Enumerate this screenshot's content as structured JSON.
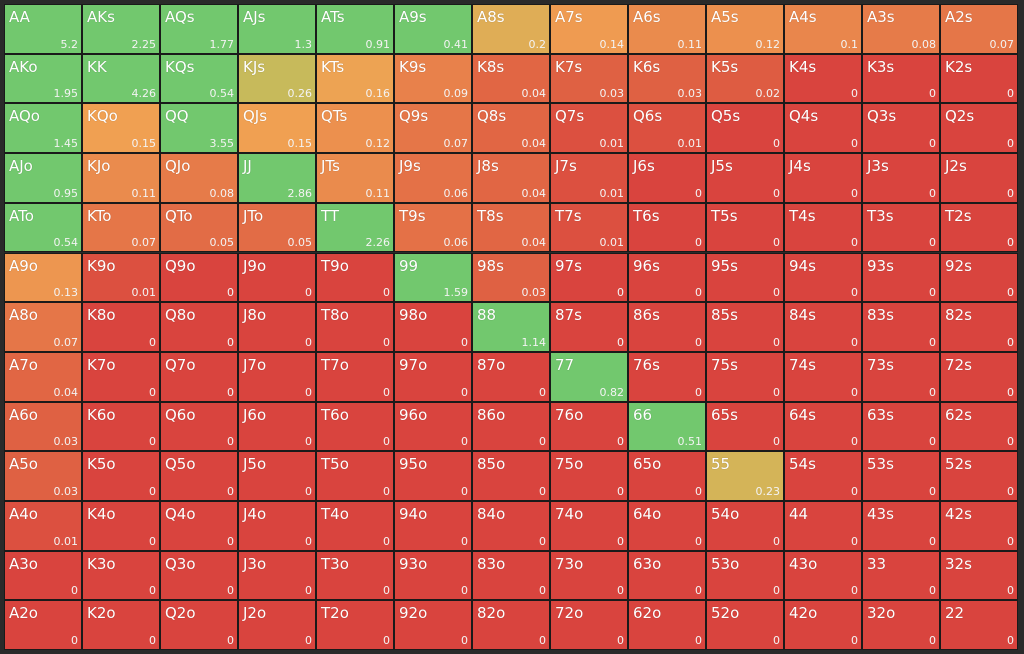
{
  "grid": {
    "rows": [
      [
        {
          "label": "AA",
          "value": 5.2
        },
        {
          "label": "AKs",
          "value": 2.25
        },
        {
          "label": "AQs",
          "value": 1.77
        },
        {
          "label": "AJs",
          "value": 1.3
        },
        {
          "label": "ATs",
          "value": 0.91
        },
        {
          "label": "A9s",
          "value": 0.41
        },
        {
          "label": "A8s",
          "value": 0.2
        },
        {
          "label": "A7s",
          "value": 0.14
        },
        {
          "label": "A6s",
          "value": 0.11
        },
        {
          "label": "A5s",
          "value": 0.12
        },
        {
          "label": "A4s",
          "value": 0.1
        },
        {
          "label": "A3s",
          "value": 0.08
        },
        {
          "label": "A2s",
          "value": 0.07
        }
      ],
      [
        {
          "label": "AKo",
          "value": 1.95
        },
        {
          "label": "KK",
          "value": 4.26
        },
        {
          "label": "KQs",
          "value": 0.54
        },
        {
          "label": "KJs",
          "value": 0.26
        },
        {
          "label": "KTs",
          "value": 0.16
        },
        {
          "label": "K9s",
          "value": 0.09
        },
        {
          "label": "K8s",
          "value": 0.04
        },
        {
          "label": "K7s",
          "value": 0.03
        },
        {
          "label": "K6s",
          "value": 0.03
        },
        {
          "label": "K5s",
          "value": 0.02
        },
        {
          "label": "K4s",
          "value": 0
        },
        {
          "label": "K3s",
          "value": 0
        },
        {
          "label": "K2s",
          "value": 0
        }
      ],
      [
        {
          "label": "AQo",
          "value": 1.45
        },
        {
          "label": "KQo",
          "value": 0.15
        },
        {
          "label": "QQ",
          "value": 3.55
        },
        {
          "label": "QJs",
          "value": 0.15
        },
        {
          "label": "QTs",
          "value": 0.12
        },
        {
          "label": "Q9s",
          "value": 0.07
        },
        {
          "label": "Q8s",
          "value": 0.04
        },
        {
          "label": "Q7s",
          "value": 0.01
        },
        {
          "label": "Q6s",
          "value": 0.01
        },
        {
          "label": "Q5s",
          "value": 0
        },
        {
          "label": "Q4s",
          "value": 0
        },
        {
          "label": "Q3s",
          "value": 0
        },
        {
          "label": "Q2s",
          "value": 0
        }
      ],
      [
        {
          "label": "AJo",
          "value": 0.95
        },
        {
          "label": "KJo",
          "value": 0.11
        },
        {
          "label": "QJo",
          "value": 0.08
        },
        {
          "label": "JJ",
          "value": 2.86
        },
        {
          "label": "JTs",
          "value": 0.11
        },
        {
          "label": "J9s",
          "value": 0.06
        },
        {
          "label": "J8s",
          "value": 0.04
        },
        {
          "label": "J7s",
          "value": 0.01
        },
        {
          "label": "J6s",
          "value": 0
        },
        {
          "label": "J5s",
          "value": 0
        },
        {
          "label": "J4s",
          "value": 0
        },
        {
          "label": "J3s",
          "value": 0
        },
        {
          "label": "J2s",
          "value": 0
        }
      ],
      [
        {
          "label": "ATo",
          "value": 0.54
        },
        {
          "label": "KTo",
          "value": 0.07
        },
        {
          "label": "QTo",
          "value": 0.05
        },
        {
          "label": "JTo",
          "value": 0.05
        },
        {
          "label": "TT",
          "value": 2.26
        },
        {
          "label": "T9s",
          "value": 0.06
        },
        {
          "label": "T8s",
          "value": 0.04
        },
        {
          "label": "T7s",
          "value": 0.01
        },
        {
          "label": "T6s",
          "value": 0
        },
        {
          "label": "T5s",
          "value": 0
        },
        {
          "label": "T4s",
          "value": 0
        },
        {
          "label": "T3s",
          "value": 0
        },
        {
          "label": "T2s",
          "value": 0
        }
      ],
      [
        {
          "label": "A9o",
          "value": 0.13
        },
        {
          "label": "K9o",
          "value": 0.01
        },
        {
          "label": "Q9o",
          "value": 0
        },
        {
          "label": "J9o",
          "value": 0
        },
        {
          "label": "T9o",
          "value": 0
        },
        {
          "label": "99",
          "value": 1.59
        },
        {
          "label": "98s",
          "value": 0.03
        },
        {
          "label": "97s",
          "value": 0
        },
        {
          "label": "96s",
          "value": 0
        },
        {
          "label": "95s",
          "value": 0
        },
        {
          "label": "94s",
          "value": 0
        },
        {
          "label": "93s",
          "value": 0
        },
        {
          "label": "92s",
          "value": 0
        }
      ],
      [
        {
          "label": "A8o",
          "value": 0.07
        },
        {
          "label": "K8o",
          "value": 0
        },
        {
          "label": "Q8o",
          "value": 0
        },
        {
          "label": "J8o",
          "value": 0
        },
        {
          "label": "T8o",
          "value": 0
        },
        {
          "label": "98o",
          "value": 0
        },
        {
          "label": "88",
          "value": 1.14
        },
        {
          "label": "87s",
          "value": 0
        },
        {
          "label": "86s",
          "value": 0
        },
        {
          "label": "85s",
          "value": 0
        },
        {
          "label": "84s",
          "value": 0
        },
        {
          "label": "83s",
          "value": 0
        },
        {
          "label": "82s",
          "value": 0
        }
      ],
      [
        {
          "label": "A7o",
          "value": 0.04
        },
        {
          "label": "K7o",
          "value": 0
        },
        {
          "label": "Q7o",
          "value": 0
        },
        {
          "label": "J7o",
          "value": 0
        },
        {
          "label": "T7o",
          "value": 0
        },
        {
          "label": "97o",
          "value": 0
        },
        {
          "label": "87o",
          "value": 0
        },
        {
          "label": "77",
          "value": 0.82
        },
        {
          "label": "76s",
          "value": 0
        },
        {
          "label": "75s",
          "value": 0
        },
        {
          "label": "74s",
          "value": 0
        },
        {
          "label": "73s",
          "value": 0
        },
        {
          "label": "72s",
          "value": 0
        }
      ],
      [
        {
          "label": "A6o",
          "value": 0.03
        },
        {
          "label": "K6o",
          "value": 0
        },
        {
          "label": "Q6o",
          "value": 0
        },
        {
          "label": "J6o",
          "value": 0
        },
        {
          "label": "T6o",
          "value": 0
        },
        {
          "label": "96o",
          "value": 0
        },
        {
          "label": "86o",
          "value": 0
        },
        {
          "label": "76o",
          "value": 0
        },
        {
          "label": "66",
          "value": 0.51
        },
        {
          "label": "65s",
          "value": 0
        },
        {
          "label": "64s",
          "value": 0
        },
        {
          "label": "63s",
          "value": 0
        },
        {
          "label": "62s",
          "value": 0
        }
      ],
      [
        {
          "label": "A5o",
          "value": 0.03
        },
        {
          "label": "K5o",
          "value": 0
        },
        {
          "label": "Q5o",
          "value": 0
        },
        {
          "label": "J5o",
          "value": 0
        },
        {
          "label": "T5o",
          "value": 0
        },
        {
          "label": "95o",
          "value": 0
        },
        {
          "label": "85o",
          "value": 0
        },
        {
          "label": "75o",
          "value": 0
        },
        {
          "label": "65o",
          "value": 0
        },
        {
          "label": "55",
          "value": 0.23
        },
        {
          "label": "54s",
          "value": 0
        },
        {
          "label": "53s",
          "value": 0
        },
        {
          "label": "52s",
          "value": 0
        }
      ],
      [
        {
          "label": "A4o",
          "value": 0.01
        },
        {
          "label": "K4o",
          "value": 0
        },
        {
          "label": "Q4o",
          "value": 0
        },
        {
          "label": "J4o",
          "value": 0
        },
        {
          "label": "T4o",
          "value": 0
        },
        {
          "label": "94o",
          "value": 0
        },
        {
          "label": "84o",
          "value": 0
        },
        {
          "label": "74o",
          "value": 0
        },
        {
          "label": "64o",
          "value": 0
        },
        {
          "label": "54o",
          "value": 0
        },
        {
          "label": "44",
          "value": 0
        },
        {
          "label": "43s",
          "value": 0
        },
        {
          "label": "42s",
          "value": 0
        }
      ],
      [
        {
          "label": "A3o",
          "value": 0
        },
        {
          "label": "K3o",
          "value": 0
        },
        {
          "label": "Q3o",
          "value": 0
        },
        {
          "label": "J3o",
          "value": 0
        },
        {
          "label": "T3o",
          "value": 0
        },
        {
          "label": "93o",
          "value": 0
        },
        {
          "label": "83o",
          "value": 0
        },
        {
          "label": "73o",
          "value": 0
        },
        {
          "label": "63o",
          "value": 0
        },
        {
          "label": "53o",
          "value": 0
        },
        {
          "label": "43o",
          "value": 0
        },
        {
          "label": "33",
          "value": 0
        },
        {
          "label": "32s",
          "value": 0
        }
      ],
      [
        {
          "label": "A2o",
          "value": 0
        },
        {
          "label": "K2o",
          "value": 0
        },
        {
          "label": "Q2o",
          "value": 0
        },
        {
          "label": "J2o",
          "value": 0
        },
        {
          "label": "T2o",
          "value": 0
        },
        {
          "label": "92o",
          "value": 0
        },
        {
          "label": "82o",
          "value": 0
        },
        {
          "label": "72o",
          "value": 0
        },
        {
          "label": "62o",
          "value": 0
        },
        {
          "label": "52o",
          "value": 0
        },
        {
          "label": "42o",
          "value": 0
        },
        {
          "label": "32o",
          "value": 0
        },
        {
          "label": "22",
          "value": 0
        }
      ]
    ]
  }
}
